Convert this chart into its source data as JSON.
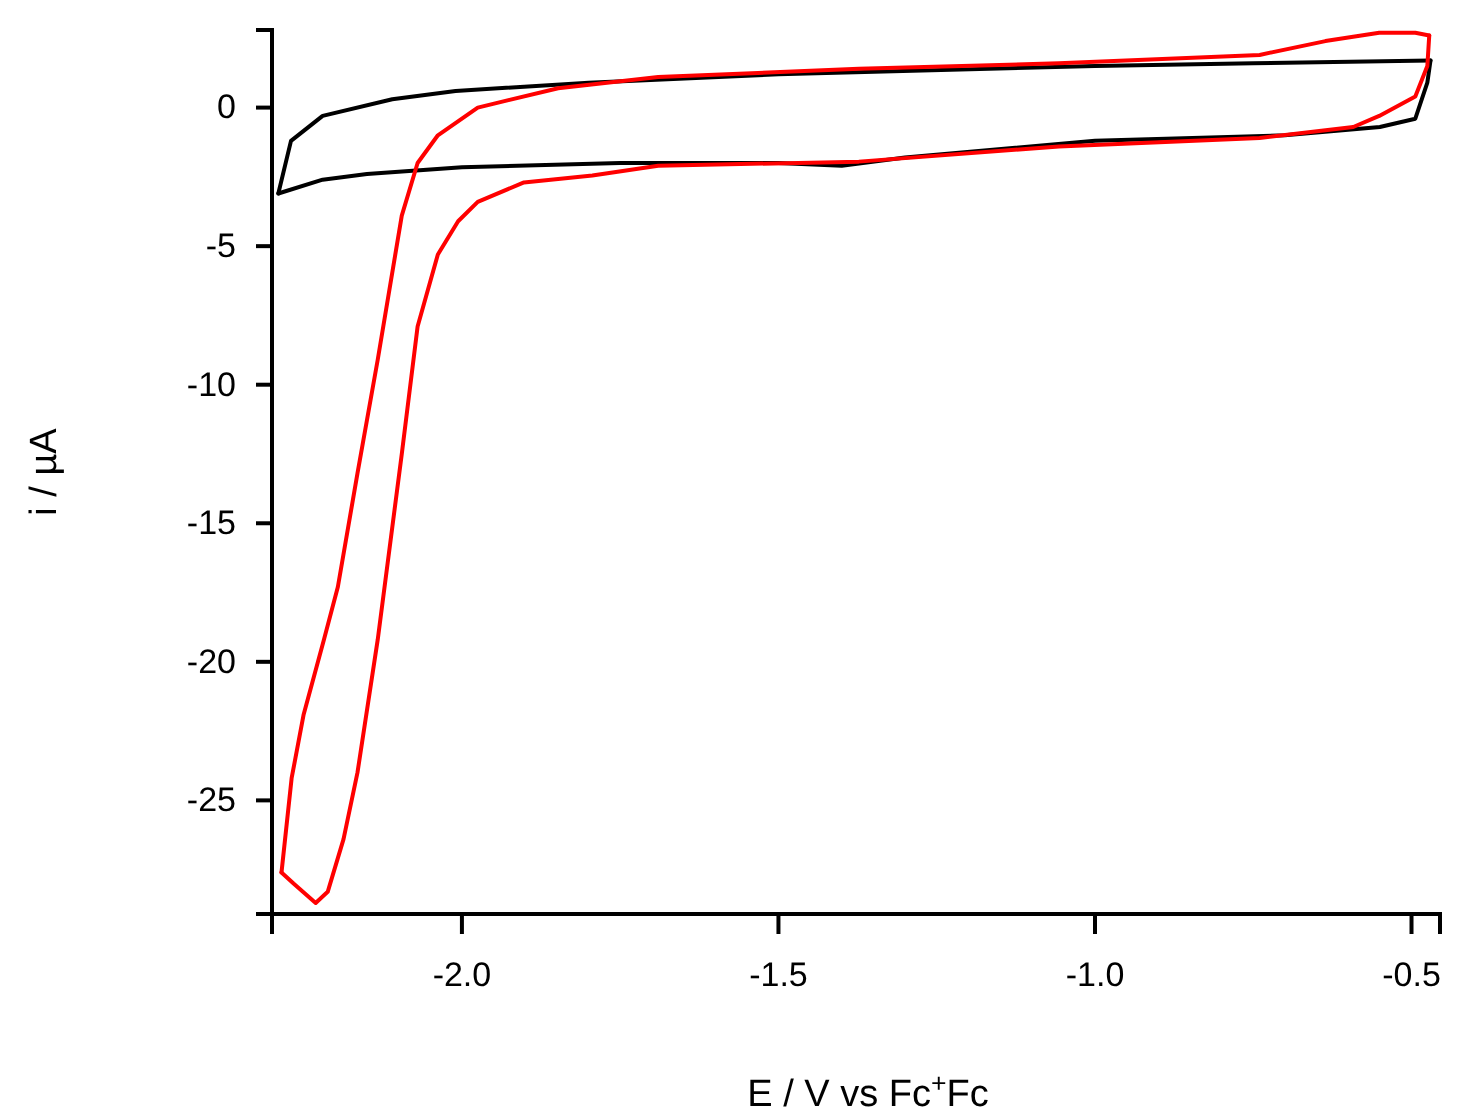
{
  "chart_data": {
    "type": "line",
    "xlabel": "E / V vs Fc$^{+}$Fc",
    "ylabel": "i / µA",
    "xlim": [
      -2.3,
      -0.455
    ],
    "ylim": [
      -29.1,
      2.8
    ],
    "xticks": [
      {
        "value": -2,
        "label": "-2.0"
      },
      {
        "value": -1.5,
        "label": "-1.5"
      },
      {
        "value": -1,
        "label": "-1.0"
      },
      {
        "value": -0.5,
        "label": "-0.5"
      }
    ],
    "yticks": [
      -25,
      -20,
      -15,
      -10,
      -5,
      0
    ],
    "grid": false,
    "marker": "none",
    "line_style": "solid",
    "series": [
      {
        "color": "#000000",
        "x": [
          -2.29,
          -2.27,
          -2.22,
          -2.11,
          -2.01,
          -1.8,
          -1.5,
          -1.0,
          -0.75,
          -0.47
        ],
        "values": [
          -3.1,
          -1.2,
          -0.3,
          0.3,
          0.6,
          0.9,
          1.2,
          1.5,
          1.6,
          1.7
        ]
      },
      {
        "color": "#000000",
        "x": [
          -0.47,
          -0.475,
          -0.494,
          -0.55,
          -0.7,
          -1.0,
          -1.3,
          -1.4,
          -1.5,
          -1.75,
          -2.0,
          -2.15,
          -2.22,
          -2.29
        ],
        "values": [
          1.7,
          0.9,
          -0.4,
          -0.7,
          -1.0,
          -1.2,
          -1.8,
          -2.1,
          -2.0,
          -2.0,
          -2.15,
          -2.4,
          -2.6,
          -3.1
        ]
      },
      {
        "color": "#ff0000",
        "x": [
          -2.285,
          -2.269,
          -2.25,
          -2.218,
          -2.196,
          -2.165,
          -2.133,
          -2.095,
          -2.07,
          -2.038,
          -1.975,
          -1.848,
          -1.69,
          -1.373,
          -1.057,
          -0.74,
          -0.636,
          -0.551,
          -0.494,
          -0.472
        ],
        "values": [
          -27.6,
          -24.2,
          -21.9,
          -19.2,
          -17.3,
          -13.2,
          -9.1,
          -3.9,
          -2.0,
          -1.0,
          0,
          0.7,
          1.1,
          1.4,
          1.6,
          1.9,
          2.4,
          2.7,
          2.7,
          2.6
        ]
      },
      {
        "color": "#ff0000",
        "x": [
          -0.472,
          -0.475,
          -0.494,
          -0.551,
          -0.592,
          -0.74,
          -1.057,
          -1.373,
          -1.69,
          -1.794,
          -1.902,
          -1.975,
          -2.006,
          -2.038,
          -2.07,
          -2.095,
          -2.133,
          -2.165,
          -2.187,
          -2.212,
          -2.231,
          -2.266,
          -2.285
        ],
        "values": [
          2.6,
          1.5,
          0.4,
          -0.3,
          -0.7,
          -1.1,
          -1.4,
          -1.95,
          -2.1,
          -2.45,
          -2.7,
          -3.4,
          -4.1,
          -5.3,
          -7.9,
          -12.5,
          -19.2,
          -24.0,
          -26.4,
          -28.3,
          -28.7,
          -28.0,
          -27.6
        ]
      }
    ]
  }
}
